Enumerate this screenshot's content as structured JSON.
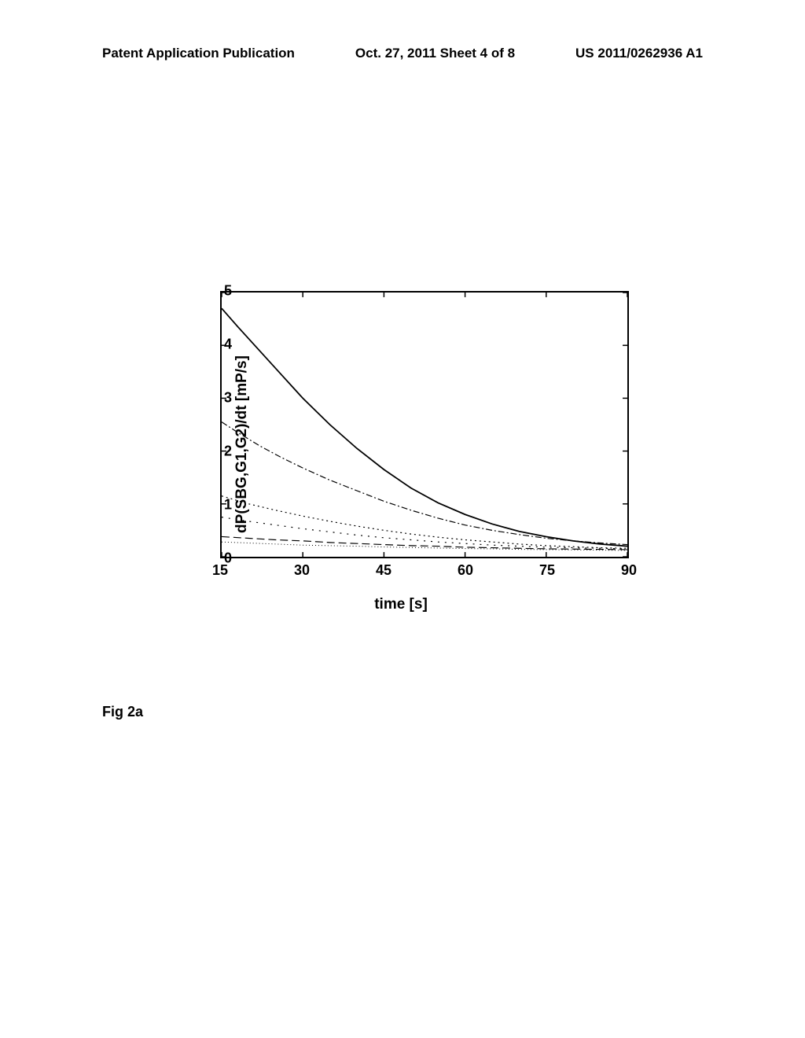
{
  "header": {
    "left": "Patent Application Publication",
    "center": "Oct. 27, 2011  Sheet 4 of 8",
    "right": "US 2011/0262936 A1"
  },
  "chart": {
    "type": "line",
    "ylabel": "dP(SBG,G1,G2)/dt [mP/s]",
    "xlabel": "time [s]",
    "xlim": [
      15,
      90
    ],
    "ylim": [
      0,
      5
    ],
    "xtick_step": 15,
    "ytick_step": 1,
    "xticks": [
      15,
      30,
      45,
      60,
      75,
      90
    ],
    "yticks": [
      0,
      1,
      2,
      3,
      4,
      5
    ],
    "background_color": "#ffffff",
    "axis_color": "#000000",
    "series": [
      {
        "name": "curve1",
        "style": "solid",
        "color": "#000000",
        "width": 1.8,
        "points": [
          [
            15,
            4.7
          ],
          [
            18,
            4.35
          ],
          [
            22,
            3.9
          ],
          [
            26,
            3.45
          ],
          [
            30,
            3.0
          ],
          [
            35,
            2.5
          ],
          [
            40,
            2.05
          ],
          [
            45,
            1.65
          ],
          [
            50,
            1.3
          ],
          [
            55,
            1.02
          ],
          [
            60,
            0.8
          ],
          [
            65,
            0.62
          ],
          [
            70,
            0.48
          ],
          [
            75,
            0.38
          ],
          [
            80,
            0.3
          ],
          [
            85,
            0.24
          ],
          [
            90,
            0.2
          ]
        ]
      },
      {
        "name": "curve2",
        "style": "dash-dot",
        "color": "#000000",
        "width": 1.2,
        "points": [
          [
            15,
            2.55
          ],
          [
            18,
            2.35
          ],
          [
            22,
            2.1
          ],
          [
            26,
            1.88
          ],
          [
            30,
            1.68
          ],
          [
            35,
            1.45
          ],
          [
            40,
            1.25
          ],
          [
            45,
            1.05
          ],
          [
            50,
            0.88
          ],
          [
            55,
            0.73
          ],
          [
            60,
            0.6
          ],
          [
            65,
            0.5
          ],
          [
            70,
            0.42
          ],
          [
            75,
            0.35
          ],
          [
            80,
            0.3
          ],
          [
            85,
            0.26
          ],
          [
            90,
            0.23
          ]
        ]
      },
      {
        "name": "curve3",
        "style": "dotted",
        "color": "#000000",
        "width": 1.2,
        "points": [
          [
            15,
            1.15
          ],
          [
            20,
            1.0
          ],
          [
            25,
            0.88
          ],
          [
            30,
            0.77
          ],
          [
            35,
            0.67
          ],
          [
            40,
            0.58
          ],
          [
            45,
            0.5
          ],
          [
            50,
            0.43
          ],
          [
            55,
            0.37
          ],
          [
            60,
            0.32
          ],
          [
            65,
            0.28
          ],
          [
            70,
            0.24
          ],
          [
            75,
            0.21
          ],
          [
            80,
            0.19
          ],
          [
            85,
            0.17
          ],
          [
            90,
            0.16
          ]
        ]
      },
      {
        "name": "curve4",
        "style": "sparse-dot",
        "color": "#000000",
        "width": 1.2,
        "points": [
          [
            15,
            0.75
          ],
          [
            20,
            0.67
          ],
          [
            25,
            0.6
          ],
          [
            30,
            0.53
          ],
          [
            35,
            0.47
          ],
          [
            40,
            0.41
          ],
          [
            45,
            0.36
          ],
          [
            50,
            0.32
          ],
          [
            55,
            0.28
          ],
          [
            60,
            0.25
          ],
          [
            65,
            0.22
          ],
          [
            70,
            0.2
          ],
          [
            75,
            0.18
          ],
          [
            80,
            0.17
          ],
          [
            85,
            0.16
          ],
          [
            90,
            0.15
          ]
        ]
      },
      {
        "name": "curve5",
        "style": "long-dash",
        "color": "#000000",
        "width": 1.2,
        "points": [
          [
            15,
            0.38
          ],
          [
            20,
            0.35
          ],
          [
            25,
            0.32
          ],
          [
            30,
            0.3
          ],
          [
            35,
            0.27
          ],
          [
            40,
            0.25
          ],
          [
            45,
            0.23
          ],
          [
            50,
            0.21
          ],
          [
            55,
            0.2
          ],
          [
            60,
            0.18
          ],
          [
            65,
            0.17
          ],
          [
            70,
            0.16
          ],
          [
            75,
            0.15
          ],
          [
            80,
            0.145
          ],
          [
            85,
            0.14
          ],
          [
            90,
            0.135
          ]
        ]
      },
      {
        "name": "curve6",
        "style": "fine-dot",
        "color": "#000000",
        "width": 1.0,
        "points": [
          [
            15,
            0.28
          ],
          [
            20,
            0.26
          ],
          [
            25,
            0.24
          ],
          [
            30,
            0.22
          ],
          [
            35,
            0.21
          ],
          [
            40,
            0.2
          ],
          [
            45,
            0.185
          ],
          [
            50,
            0.175
          ],
          [
            55,
            0.165
          ],
          [
            60,
            0.155
          ],
          [
            65,
            0.15
          ],
          [
            70,
            0.14
          ],
          [
            75,
            0.135
          ],
          [
            80,
            0.13
          ],
          [
            85,
            0.125
          ],
          [
            90,
            0.12
          ]
        ]
      }
    ]
  },
  "caption": "Fig 2a",
  "typography": {
    "header_fontsize": 17,
    "label_fontsize": 19,
    "tick_fontsize": 18,
    "caption_fontsize": 18,
    "font_family": "Arial"
  }
}
